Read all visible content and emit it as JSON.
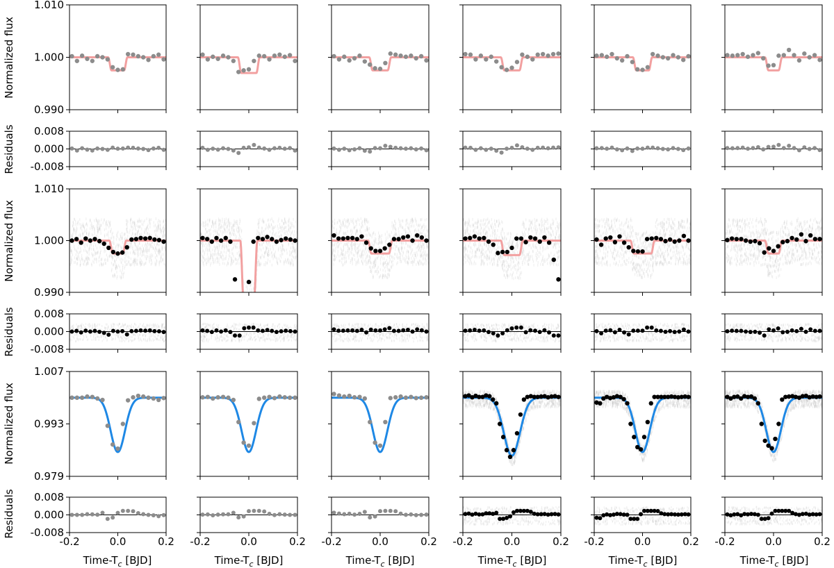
{
  "figure": {
    "ylabel_flux": "Normalized flux",
    "ylabel_resid": "Residuals",
    "xlabel": "Time-T",
    "xlabel_sub": "c",
    "xlabel_unit": " [BJD]",
    "colors": {
      "model_red": "#f2a0a0",
      "model_blue": "#1e88e5",
      "points_gray": "#8c8c8c",
      "points_black": "#000000",
      "background_scatter": "#bbbbbb"
    }
  },
  "chart_data": {
    "type": "scatter",
    "layout": "6 columns x 3 flux/residual panel pairs",
    "x_range": [
      -0.2,
      0.2
    ],
    "x_ticks": [
      "-0.2",
      "0.0",
      "0.2"
    ],
    "resid_ticks": [
      "0.008",
      "0.000",
      "-0.008"
    ],
    "resid_range": [
      -0.008,
      0.008
    ],
    "rows": [
      {
        "flux_range": [
          0.99,
          1.01
        ],
        "flux_ticks": [
          "1.010",
          "1.000",
          "0.990"
        ],
        "model_color": "red",
        "point_color": "gray",
        "background": false,
        "columns": [
          {
            "depth": 0.0025,
            "dur": 0.08,
            "fluxes": [
              1.0002,
              0.9993,
              1.0003,
              0.9997,
              0.9993,
              1.0002,
              1.0,
              0.9996,
              0.9981,
              0.9976,
              0.9977,
              1.0006,
              1.0005,
              1.0002,
              1.0,
              0.9995,
              1.0002,
              1.0005,
              0.9996
            ]
          },
          {
            "depth": 0.003,
            "dur": 0.09,
            "fluxes": [
              1.0005,
              0.9996,
              1.0001,
              0.9997,
              1.0003,
              1.0,
              0.9993,
              0.9972,
              0.9975,
              0.9977,
              0.9993,
              1.0003,
              1.0002,
              0.9996,
              1.0003,
              1.0005,
              1.0001,
              1.0004,
              0.9993
            ]
          },
          {
            "depth": 0.0025,
            "dur": 0.09,
            "fluxes": [
              1.0002,
              0.9996,
              1.0001,
              0.9994,
              0.9998,
              1.0003,
              0.9992,
              0.9986,
              0.9979,
              0.9978,
              0.9989,
              1.0007,
              1.0005,
              1.0003,
              1.0001,
              1.0003,
              0.9998,
              1.0002,
              0.9994
            ]
          },
          {
            "depth": 0.0025,
            "dur": 0.09,
            "fluxes": [
              1.0006,
              1.0005,
              0.9996,
              1.0003,
              0.9996,
              1.0001,
              0.9992,
              0.9981,
              0.9976,
              0.998,
              0.9991,
              1.0005,
              1.0001,
              0.9996,
              1.0005,
              1.0006,
              1.0003,
              1.0006,
              1.0007
            ]
          },
          {
            "depth": 0.0025,
            "dur": 0.08,
            "fluxes": [
              1.0003,
              1.0004,
              1.0001,
              1.0006,
              0.9998,
              0.9994,
              1.0002,
              0.9991,
              0.9977,
              0.9976,
              0.9981,
              1.0006,
              1.0003,
              1.0,
              0.9998,
              1.0004,
              1.0,
              0.9995,
              1.0002
            ]
          },
          {
            "depth": 0.0025,
            "dur": 0.07,
            "fluxes": [
              1.0004,
              1.0003,
              1.0004,
              1.0006,
              1.0001,
              1.0004,
              1.0008,
              0.9998,
              0.9984,
              0.9985,
              1.0003,
              1.0004,
              1.0014,
              1.0004,
              0.9994,
              1.0007,
              1.0,
              1.0004,
              0.9995
            ]
          }
        ]
      },
      {
        "flux_range": [
          0.99,
          1.01
        ],
        "flux_ticks": [
          "1.010",
          "1.000",
          "0.990"
        ],
        "model_color": "red",
        "point_color": "black",
        "background": true,
        "columns": [
          {
            "depth": 0.0025,
            "dur": 0.07,
            "fluxes": [
              1.0,
              1.0003,
              0.9996,
              1.0004,
              1.0,
              1.0003,
              0.9999,
              0.9994,
              0.9986,
              0.9978,
              0.9975,
              0.9977,
              0.9987,
              1.0002,
              1.0003,
              1.0005,
              1.0004,
              1.0005,
              1.0002,
              1.0001,
              0.9998
            ]
          },
          {
            "depth": 0.012,
            "dur": 0.07,
            "fluxes": [
              1.0005,
              1.0003,
              0.9998,
              1.0005,
              1.0,
              1.0005,
              0.9998,
              0.9925,
              0.9895,
              0.9895,
              0.992,
              0.9998,
              1.0005,
              1.0003,
              1.0007,
              1.0003,
              0.9998,
              1.0001,
              1.0004,
              1.0002,
              1.0
            ]
          },
          {
            "depth": 0.0025,
            "dur": 0.1,
            "fluxes": [
              1.001,
              1.0004,
              1.0004,
              1.0005,
              1.0005,
              1.0003,
              1.0008,
              0.9996,
              0.9985,
              0.998,
              0.998,
              0.9985,
              0.9992,
              1.0003,
              1.0003,
              1.0006,
              1.0008,
              1.0,
              1.001,
              1.0006,
              1.0
            ]
          },
          {
            "depth": 0.0028,
            "dur": 0.09,
            "fluxes": [
              1.0004,
              1.0005,
              1.0008,
              1.0004,
              1.0005,
              0.9998,
              0.9992,
              0.9976,
              0.9978,
              0.9978,
              0.9986,
              1.0004,
              1.0004,
              0.9997,
              1.0006,
              1.0004,
              0.9998,
              1.0006,
              0.9996,
              0.9963,
              0.9925
            ]
          },
          {
            "depth": 0.0025,
            "dur": 0.1,
            "fluxes": [
              1.0002,
              0.9992,
              1.0004,
              1.0006,
              0.9997,
              1.0008,
              0.9996,
              0.9987,
              0.998,
              0.9979,
              0.9979,
              1.0003,
              1.0004,
              1.0005,
              1.0003,
              0.9999,
              1.0002,
              0.9998,
              1.0,
              1.0009,
              1.0
            ]
          },
          {
            "depth": 0.0025,
            "dur": 0.07,
            "fluxes": [
              1.0001,
              1.0004,
              1.0003,
              1.0003,
              1.0,
              0.9998,
              0.9999,
              0.9995,
              0.9977,
              0.9985,
              0.998,
              0.9989,
              0.9997,
              0.9999,
              1.0005,
              1.0002,
              1.0012,
              0.9999,
              1.001,
              1.0003,
              1.0003
            ]
          }
        ]
      },
      {
        "flux_range": [
          0.979,
          1.007
        ],
        "flux_ticks": [
          "1.007",
          "0.993",
          "0.979"
        ],
        "model_color": "blue",
        "point_color_by_column": [
          "gray",
          "gray",
          "gray",
          "black",
          "black",
          "black"
        ],
        "background_by_column": [
          false,
          false,
          false,
          true,
          true,
          true
        ],
        "columns": [
          {
            "depth": 0.0145,
            "dur": 0.1,
            "fluxes": [
              1.0,
              1.0,
              1.0,
              1.0003,
              1.0002,
              0.9998,
              0.9994,
              0.9925,
              0.9875,
              0.9864,
              0.993,
              0.9993,
              1.0001,
              1.0005,
              1.0003,
              1.0,
              0.9998,
              0.9994,
              0.9999
            ]
          },
          {
            "depth": 0.0145,
            "dur": 0.1,
            "fluxes": [
              1.0001,
              1.0002,
              0.9998,
              1.0001,
              1.0002,
              1.0,
              0.9994,
              0.9935,
              0.988,
              0.9872,
              0.9932,
              0.9997,
              1.0,
              1.0002,
              0.9999,
              1.0003,
              1.0001,
              1.0,
              1.0
            ]
          },
          {
            "depth": 0.0145,
            "dur": 0.1,
            "fluxes": [
              1.001,
              1.0006,
              1.0003,
              1.0005,
              1.0001,
              1.0002,
              0.9998,
              0.9935,
              0.988,
              0.9872,
              0.9935,
              0.9999,
              1.0001,
              1.0003,
              1.0,
              1.0002,
              0.9999,
              1.0,
              1.0001
            ]
          },
          {
            "depth": 0.0155,
            "dur": 0.11,
            "fluxes": [
              1.0004,
              1.0006,
              1.0001,
              1.0005,
              1.0002,
              1.0002,
              1.0006,
              1.0004,
              0.9995,
              0.9985,
              0.993,
              0.9895,
              0.986,
              0.9842,
              0.986,
              0.9905,
              0.9955,
              0.9995,
              1.0002,
              1.0004,
              1.0002,
              1.0002,
              1.0003,
              1.0004,
              1.0001,
              1.0003,
              1.0004,
              1.0002
            ]
          },
          {
            "depth": 0.0145,
            "dur": 0.1,
            "fluxes": [
              0.9987,
              0.9985,
              0.9998,
              1.0002,
              0.9999,
              1.0001,
              1.0004,
              1.0002,
              0.9996,
              0.9985,
              0.993,
              0.9895,
              0.9868,
              0.9862,
              0.9895,
              0.9935,
              0.9985,
              1.0002,
              1.0002,
              1.0002,
              1.0002,
              1.0002,
              1.0003,
              1.0002,
              1.0001,
              1.0002,
              1.0003,
              1.0002
            ]
          },
          {
            "depth": 0.0145,
            "dur": 0.1,
            "fluxes": [
              1.0002,
              0.9998,
              1.0002,
              1.0003,
              0.9998,
              1.0004,
              1.0002,
              1.0003,
              0.9998,
              0.9985,
              0.993,
              0.9885,
              0.9872,
              0.9865,
              0.989,
              0.993,
              0.9995,
              1.0002,
              1.0003,
              1.0004,
              1.0002,
              1.0,
              1.0004,
              1.0005,
              1.0001,
              1.0003,
              1.0002,
              1.0003
            ]
          }
        ]
      }
    ]
  }
}
